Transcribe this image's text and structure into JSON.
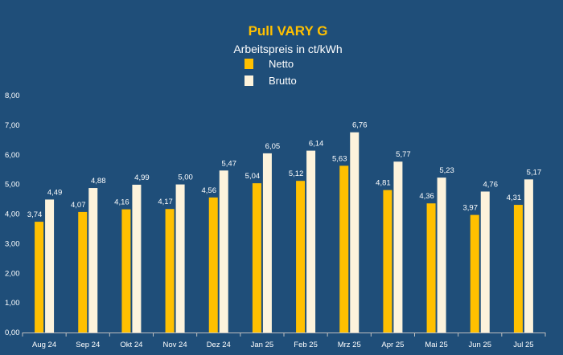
{
  "chart_data": {
    "type": "bar",
    "title": "Pull VARY G",
    "subtitle": "Arbeitspreis in ct/kWh",
    "categories": [
      "Aug 24",
      "Sep 24",
      "Okt 24",
      "Nov 24",
      "Dez 24",
      "Jan 25",
      "Feb 25",
      "Mrz 25",
      "Apr 25",
      "Mai 25",
      "Jun 25",
      "Jul 25"
    ],
    "series": [
      {
        "name": "Netto",
        "color": "#ffc000",
        "values": [
          3.74,
          4.07,
          4.16,
          4.17,
          4.56,
          5.04,
          5.12,
          5.63,
          4.81,
          4.36,
          3.97,
          4.31
        ],
        "labels": [
          "3,74",
          "4,07",
          "4,16",
          "4,17",
          "4,56",
          "5,04",
          "5,12",
          "5,63",
          "4,81",
          "4,36",
          "3,97",
          "4,31"
        ]
      },
      {
        "name": "Brutto",
        "color": "#fdf3dc",
        "values": [
          4.49,
          4.88,
          4.99,
          5.0,
          5.47,
          6.05,
          6.14,
          6.76,
          5.77,
          5.23,
          4.76,
          5.17
        ],
        "labels": [
          "4,49",
          "4,88",
          "4,99",
          "5,00",
          "5,47",
          "6,05",
          "6,14",
          "6,76",
          "5,77",
          "5,23",
          "4,76",
          "5,17"
        ]
      }
    ],
    "ylim": [
      0,
      8
    ],
    "yticks": [
      "0,00",
      "1,00",
      "2,00",
      "3,00",
      "4,00",
      "5,00",
      "6,00",
      "7,00",
      "8,00"
    ],
    "grid": false,
    "legend_position": "top-center",
    "colors": {
      "background": "#1f4e79",
      "title": "#ffc000",
      "text": "#ffffff",
      "axis": "#bfbfbf"
    }
  }
}
